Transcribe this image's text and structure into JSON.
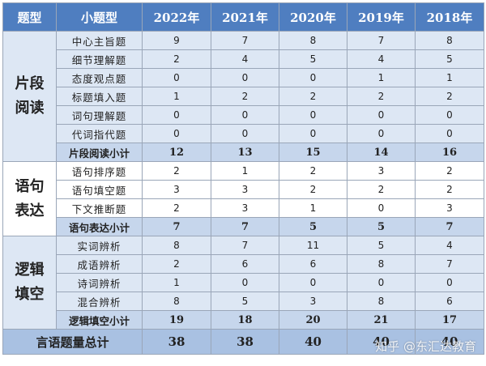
{
  "header": {
    "col_type": "题型",
    "col_sub": "小题型",
    "years": [
      "2022年",
      "2021年",
      "2020年",
      "2019年",
      "2018年"
    ]
  },
  "sections": [
    {
      "name_line1": "片段",
      "name_line2": "阅读",
      "rows": [
        {
          "label": "中心主旨题",
          "values": [
            "9",
            "7",
            "8",
            "7",
            "8"
          ]
        },
        {
          "label": "细节理解题",
          "values": [
            "2",
            "4",
            "5",
            "4",
            "5"
          ]
        },
        {
          "label": "态度观点题",
          "values": [
            "0",
            "0",
            "0",
            "1",
            "1"
          ]
        },
        {
          "label": "标题填入题",
          "values": [
            "1",
            "2",
            "2",
            "2",
            "2"
          ]
        },
        {
          "label": "词句理解题",
          "values": [
            "0",
            "0",
            "0",
            "0",
            "0"
          ]
        },
        {
          "label": "代词指代题",
          "values": [
            "0",
            "0",
            "0",
            "0",
            "0"
          ]
        }
      ],
      "subtotal": {
        "label": "片段阅读小计",
        "values": [
          "12",
          "13",
          "15",
          "14",
          "16"
        ]
      }
    },
    {
      "name_line1": "语句",
      "name_line2": "表达",
      "rows": [
        {
          "label": "语句排序题",
          "values": [
            "2",
            "1",
            "2",
            "3",
            "2"
          ]
        },
        {
          "label": "语句填空题",
          "values": [
            "3",
            "3",
            "2",
            "2",
            "2"
          ]
        },
        {
          "label": "下文推断题",
          "values": [
            "2",
            "3",
            "1",
            "0",
            "3"
          ]
        }
      ],
      "subtotal": {
        "label": "语句表达小计",
        "values": [
          "7",
          "7",
          "5",
          "5",
          "7"
        ]
      }
    },
    {
      "name_line1": "逻辑",
      "name_line2": "填空",
      "rows": [
        {
          "label": "实词辨析",
          "values": [
            "8",
            "7",
            "11",
            "5",
            "4"
          ]
        },
        {
          "label": "成语辨析",
          "values": [
            "2",
            "6",
            "6",
            "8",
            "7"
          ]
        },
        {
          "label": "诗词辨析",
          "values": [
            "1",
            "0",
            "0",
            "0",
            "0"
          ]
        },
        {
          "label": "混合辨析",
          "values": [
            "8",
            "5",
            "3",
            "8",
            "6"
          ]
        }
      ],
      "subtotal": {
        "label": "逻辑填空小计",
        "values": [
          "19",
          "18",
          "20",
          "21",
          "17"
        ]
      }
    }
  ],
  "grand_total": {
    "label": "言语题量总计",
    "values": [
      "38",
      "38",
      "40",
      "40",
      "40"
    ]
  },
  "watermark": "知乎 @东汇达教育"
}
